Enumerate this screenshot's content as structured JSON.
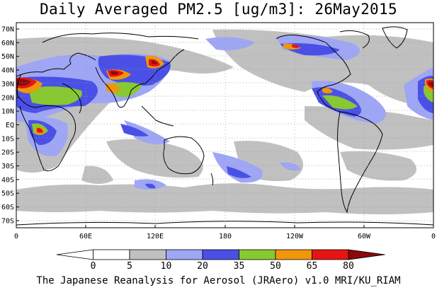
{
  "title": "Daily Averaged PM2.5 [ug/m3]: 26May2015",
  "footer": "The Japanese Reanalysis for Aerosol (JRAero) v1.0 MRI/KU_RIAM",
  "map": {
    "lat_labels": [
      "70N",
      "60N",
      "50N",
      "40N",
      "30N",
      "20N",
      "10N",
      "EQ",
      "10S",
      "20S",
      "30S",
      "40S",
      "50S",
      "60S",
      "70S"
    ],
    "lon_labels": [
      "0",
      "60E",
      "120E",
      "180",
      "120W",
      "60W",
      "0"
    ],
    "gridlines": true,
    "colors": {
      "land_outline": "#000000",
      "grid": "#888888"
    }
  },
  "colorbar": {
    "levels": [
      "0",
      "5",
      "10",
      "20",
      "35",
      "50",
      "65",
      "80"
    ],
    "bins": [
      {
        "from": "<0",
        "color": "#ffffff"
      },
      {
        "from": "0",
        "color": "#ffffff"
      },
      {
        "from": "5",
        "color": "#c0c0c0"
      },
      {
        "from": "10",
        "color": "#9ea6f5"
      },
      {
        "from": "20",
        "color": "#4a50e6"
      },
      {
        "from": "35",
        "color": "#88c832"
      },
      {
        "from": "50",
        "color": "#f0960a"
      },
      {
        "from": "65",
        "color": "#e61414"
      },
      {
        "from": ">80",
        "color": "#8b0a0a"
      }
    ]
  }
}
